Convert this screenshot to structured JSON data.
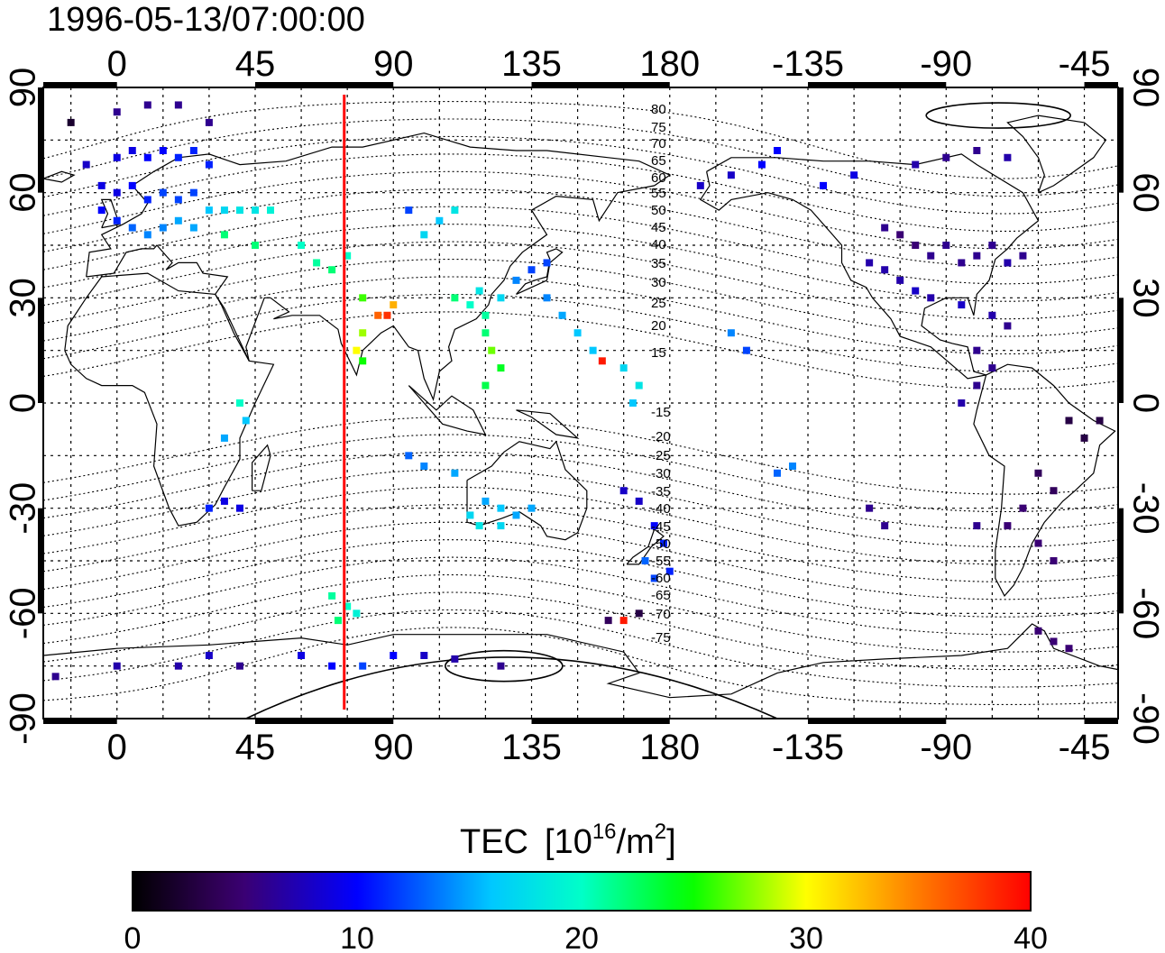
{
  "title": "1996-05-13/07:00:00",
  "axes": {
    "top_ticks": [
      "0",
      "45",
      "90",
      "135",
      "180",
      "-135",
      "-90",
      "-45"
    ],
    "bottom_ticks": [
      "0",
      "45",
      "90",
      "135",
      "180",
      "-135",
      "-90",
      "-45"
    ],
    "left_ticks": [
      "90",
      "60",
      "30",
      "0",
      "-30",
      "-60",
      "-90"
    ],
    "right_ticks": [
      "90",
      "60",
      "30",
      "0",
      "-30",
      "-60",
      "-90"
    ]
  },
  "contour_labels": [
    "80",
    "75",
    "70",
    "65",
    "60",
    "55",
    "50",
    "45",
    "40",
    "35",
    "30",
    "25",
    "20",
    "15",
    "-15",
    "-20",
    "-25",
    "-30",
    "-35",
    "-40",
    "-45",
    "-50",
    "-55",
    "-60",
    "-65",
    "-70",
    "-75"
  ],
  "colorbar": {
    "label": "TEC",
    "unit_base": "[10",
    "unit_exp": "16",
    "unit_mid": "/m",
    "unit_exp2": "2",
    "unit_end": "]",
    "ticks": [
      "0",
      "10",
      "20",
      "30",
      "40"
    ],
    "range": [
      0,
      40
    ]
  },
  "map": {
    "projection": "equirectangular",
    "lon_range": [
      -24,
      326
    ],
    "lat_range": [
      -90,
      90
    ],
    "marker_longitude": 74,
    "marker_color": "#ff0000"
  },
  "chart_data": {
    "type": "scatter",
    "title": "1996-05-13/07:00:00",
    "xlabel": "",
    "ylabel": "",
    "xlim": [
      -24,
      326
    ],
    "ylim": [
      -90,
      90
    ],
    "colorbar_label": "TEC [10^16/m^2]",
    "clim": [
      0,
      40
    ],
    "points_description": "GPS TEC station observations (lon, lat, TEC)",
    "points": [
      [
        -15,
        80,
        2
      ],
      [
        10,
        85,
        6
      ],
      [
        20,
        85,
        6
      ],
      [
        30,
        80,
        6
      ],
      [
        0,
        83,
        6
      ],
      [
        -10,
        68,
        8
      ],
      [
        0,
        70,
        9
      ],
      [
        5,
        72,
        9
      ],
      [
        10,
        70,
        10
      ],
      [
        15,
        72,
        10
      ],
      [
        20,
        70,
        11
      ],
      [
        25,
        72,
        11
      ],
      [
        30,
        68,
        11
      ],
      [
        -5,
        62,
        9
      ],
      [
        0,
        60,
        9
      ],
      [
        5,
        62,
        10
      ],
      [
        10,
        58,
        11
      ],
      [
        15,
        60,
        12
      ],
      [
        20,
        58,
        12
      ],
      [
        25,
        60,
        12
      ],
      [
        -5,
        55,
        10
      ],
      [
        0,
        52,
        11
      ],
      [
        5,
        50,
        13
      ],
      [
        10,
        48,
        14
      ],
      [
        15,
        50,
        14
      ],
      [
        20,
        52,
        15
      ],
      [
        25,
        50,
        15
      ],
      [
        30,
        55,
        16
      ],
      [
        35,
        55,
        17
      ],
      [
        40,
        55,
        18
      ],
      [
        45,
        55,
        18
      ],
      [
        50,
        55,
        19
      ],
      [
        35,
        48,
        22
      ],
      [
        45,
        45,
        22
      ],
      [
        60,
        45,
        20
      ],
      [
        65,
        40,
        21
      ],
      [
        70,
        38,
        22
      ],
      [
        75,
        42,
        20
      ],
      [
        80,
        30,
        26
      ],
      [
        85,
        25,
        36
      ],
      [
        88,
        25,
        38
      ],
      [
        90,
        28,
        33
      ],
      [
        80,
        20,
        28
      ],
      [
        78,
        15,
        30
      ],
      [
        80,
        12,
        25
      ],
      [
        95,
        55,
        12
      ],
      [
        105,
        52,
        16
      ],
      [
        110,
        55,
        18
      ],
      [
        100,
        48,
        17
      ],
      [
        110,
        30,
        22
      ],
      [
        115,
        28,
        20
      ],
      [
        118,
        32,
        18
      ],
      [
        120,
        25,
        21
      ],
      [
        125,
        30,
        17
      ],
      [
        130,
        35,
        14
      ],
      [
        135,
        38,
        12
      ],
      [
        140,
        40,
        12
      ],
      [
        120,
        20,
        22
      ],
      [
        122,
        15,
        27
      ],
      [
        125,
        10,
        24
      ],
      [
        120,
        5,
        23
      ],
      [
        140,
        30,
        14
      ],
      [
        145,
        25,
        15
      ],
      [
        150,
        20,
        16
      ],
      [
        155,
        15,
        16
      ],
      [
        158,
        12,
        39
      ],
      [
        165,
        10,
        17
      ],
      [
        170,
        5,
        18
      ],
      [
        168,
        0,
        16
      ],
      [
        40,
        0,
        20
      ],
      [
        42,
        -5,
        16
      ],
      [
        35,
        -10,
        15
      ],
      [
        30,
        -30,
        11
      ],
      [
        35,
        -28,
        9
      ],
      [
        40,
        -30,
        9
      ],
      [
        95,
        -15,
        13
      ],
      [
        100,
        -18,
        14
      ],
      [
        110,
        -20,
        15
      ],
      [
        120,
        -28,
        15
      ],
      [
        125,
        -30,
        16
      ],
      [
        130,
        -32,
        15
      ],
      [
        115,
        -32,
        17
      ],
      [
        118,
        -35,
        18
      ],
      [
        125,
        -35,
        17
      ],
      [
        135,
        -30,
        15
      ],
      [
        70,
        -55,
        21
      ],
      [
        75,
        -58,
        20
      ],
      [
        78,
        -60,
        19
      ],
      [
        72,
        -62,
        22
      ],
      [
        165,
        -25,
        8
      ],
      [
        170,
        -28,
        8
      ],
      [
        175,
        -35,
        10
      ],
      [
        178,
        -40,
        11
      ],
      [
        172,
        -45,
        13
      ],
      [
        175,
        -50,
        12
      ],
      [
        180,
        -48,
        11
      ],
      [
        170,
        -60,
        3
      ],
      [
        165,
        -62,
        39
      ],
      [
        160,
        -62,
        4
      ],
      [
        -20,
        -78,
        6
      ],
      [
        0,
        -75,
        7
      ],
      [
        20,
        -75,
        7
      ],
      [
        30,
        -72,
        8
      ],
      [
        40,
        -75,
        6
      ],
      [
        60,
        -72,
        9
      ],
      [
        70,
        -75,
        10
      ],
      [
        80,
        -75,
        12
      ],
      [
        90,
        -72,
        10
      ],
      [
        100,
        -72,
        8
      ],
      [
        110,
        -73,
        7
      ],
      [
        125,
        -75,
        6
      ],
      [
        200,
        20,
        14
      ],
      [
        205,
        15,
        12
      ],
      [
        215,
        -20,
        13
      ],
      [
        220,
        -18,
        14
      ],
      [
        215,
        72,
        10
      ],
      [
        210,
        68,
        10
      ],
      [
        200,
        65,
        8
      ],
      [
        190,
        62,
        8
      ],
      [
        230,
        62,
        10
      ],
      [
        240,
        65,
        9
      ],
      [
        260,
        68,
        7
      ],
      [
        270,
        70,
        6
      ],
      [
        280,
        72,
        6
      ],
      [
        290,
        70,
        7
      ],
      [
        250,
        50,
        6
      ],
      [
        255,
        48,
        5
      ],
      [
        260,
        45,
        5
      ],
      [
        265,
        42,
        6
      ],
      [
        270,
        45,
        6
      ],
      [
        275,
        40,
        6
      ],
      [
        280,
        42,
        6
      ],
      [
        285,
        45,
        6
      ],
      [
        290,
        40,
        7
      ],
      [
        295,
        42,
        6
      ],
      [
        245,
        40,
        7
      ],
      [
        250,
        38,
        7
      ],
      [
        255,
        35,
        7
      ],
      [
        260,
        32,
        8
      ],
      [
        265,
        30,
        7
      ],
      [
        275,
        28,
        8
      ],
      [
        285,
        25,
        7
      ],
      [
        290,
        22,
        6
      ],
      [
        280,
        15,
        6
      ],
      [
        285,
        10,
        6
      ],
      [
        280,
        5,
        6
      ],
      [
        275,
        0,
        7
      ],
      [
        300,
        -20,
        4
      ],
      [
        305,
        -25,
        4
      ],
      [
        295,
        -30,
        5
      ],
      [
        290,
        -35,
        5
      ],
      [
        300,
        -40,
        5
      ],
      [
        305,
        -45,
        5
      ],
      [
        280,
        -35,
        6
      ],
      [
        245,
        -30,
        6
      ],
      [
        250,
        -35,
        6
      ],
      [
        310,
        -5,
        3
      ],
      [
        315,
        -10,
        3
      ],
      [
        320,
        -5,
        3
      ],
      [
        300,
        -65,
        5
      ],
      [
        305,
        -68,
        5
      ],
      [
        310,
        -70,
        5
      ]
    ]
  }
}
